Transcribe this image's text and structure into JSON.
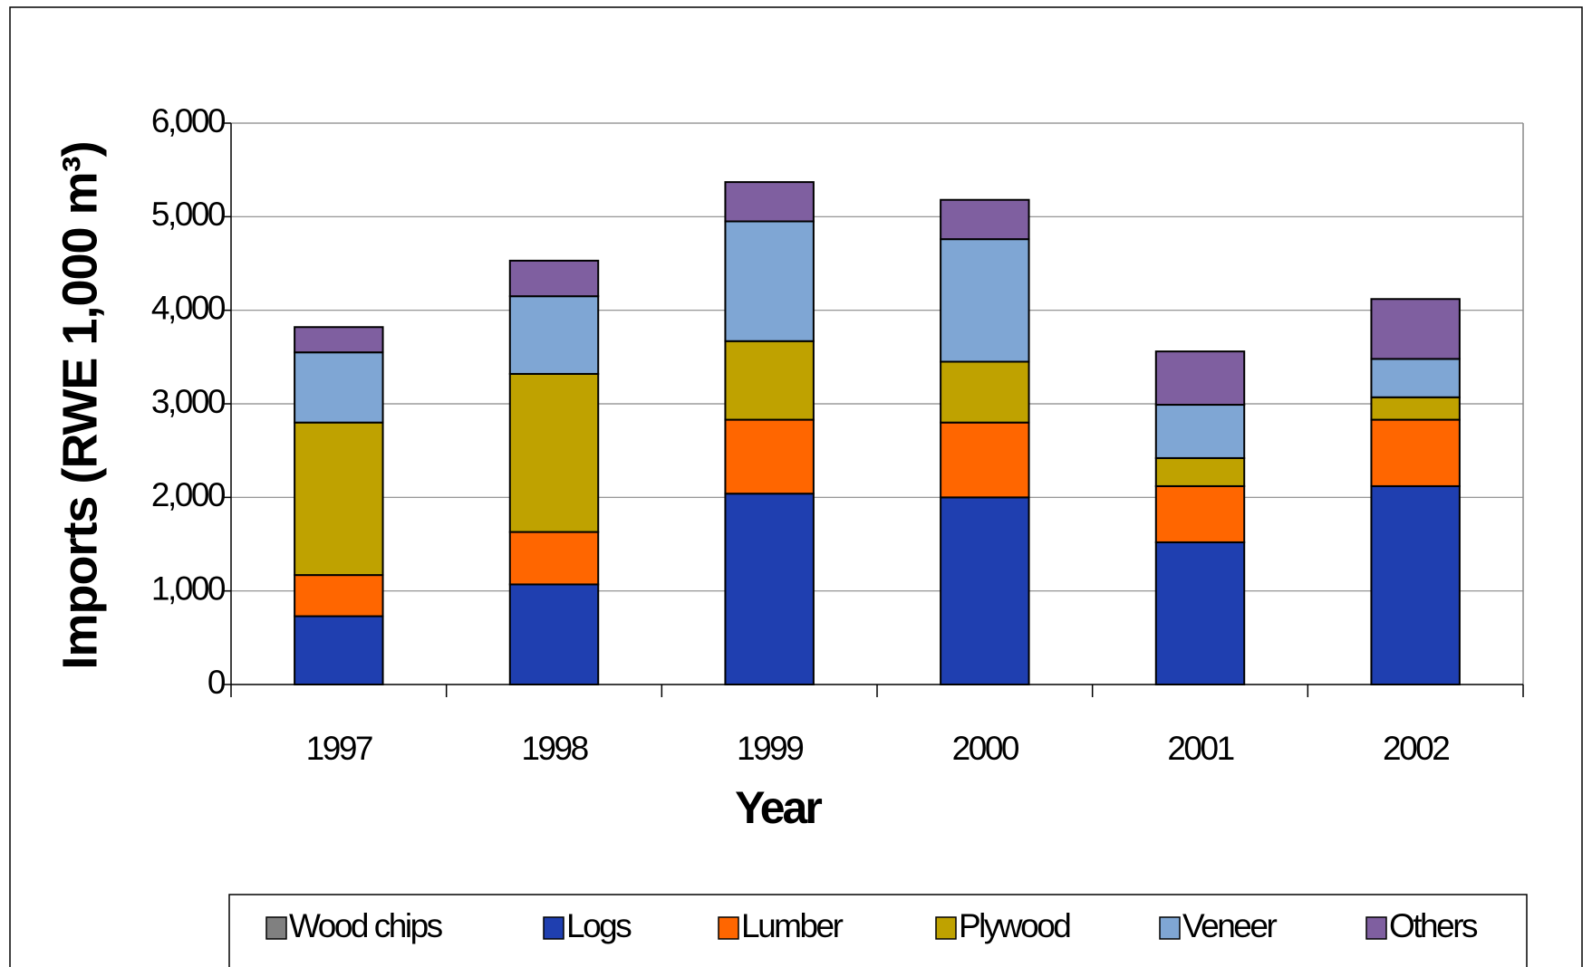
{
  "chart_data": {
    "type": "stacked_bar",
    "x_label": "Year",
    "y_label": "Imports (RWE 1,000 m³)",
    "categories": [
      "1997",
      "1998",
      "1999",
      "2000",
      "2001",
      "2002"
    ],
    "series": [
      {
        "name": "Wood chips",
        "color": "#808080",
        "values": [
          0,
          0,
          0,
          0,
          0,
          0
        ]
      },
      {
        "name": "Logs",
        "color": "#1f3fb0",
        "values": [
          730,
          1070,
          2040,
          2000,
          1520,
          2120
        ]
      },
      {
        "name": "Lumber",
        "color": "#ff6600",
        "values": [
          440,
          560,
          790,
          800,
          600,
          710
        ]
      },
      {
        "name": "Plywood",
        "color": "#bfa200",
        "values": [
          1630,
          1690,
          840,
          650,
          300,
          240
        ]
      },
      {
        "name": "Veneer",
        "color": "#7fa6d4",
        "values": [
          750,
          830,
          1280,
          1310,
          570,
          410
        ]
      },
      {
        "name": "Others",
        "color": "#7f5fa0",
        "values": [
          270,
          380,
          420,
          420,
          570,
          640
        ]
      }
    ],
    "ylim": [
      0,
      6000
    ],
    "yticks": [
      0,
      {
        "value": 1000,
        "label": "1,000"
      },
      {
        "value": 2000,
        "label": "2,000"
      },
      {
        "value": 3000,
        "label": "3,000"
      },
      {
        "value": 4000,
        "label": "4,000"
      },
      {
        "value": 5000,
        "label": "5,000"
      },
      {
        "value": 6000,
        "label": "6,000"
      }
    ],
    "grid": true,
    "legend": "bottom"
  }
}
